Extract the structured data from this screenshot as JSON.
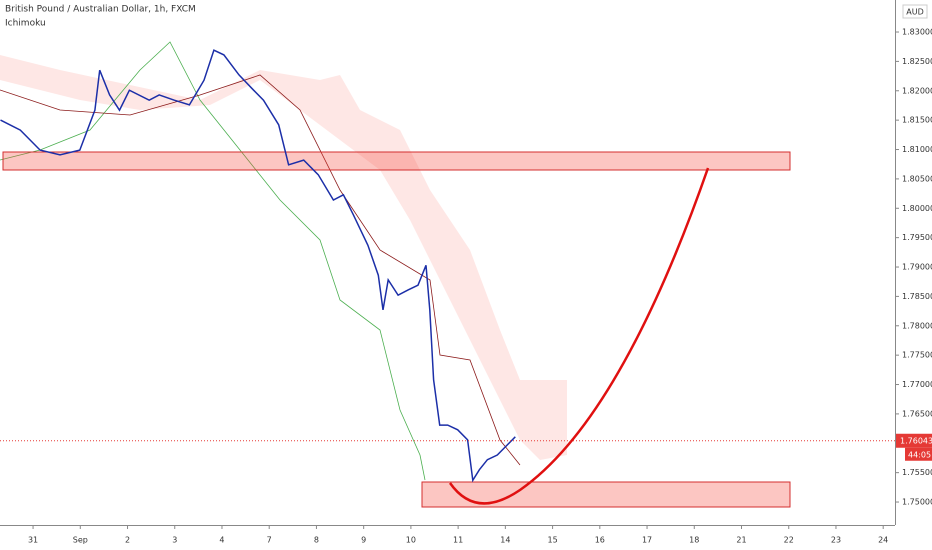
{
  "chart_data": {
    "type": "line",
    "title": "British Pound / Australian Dollar, 1h, FXCM",
    "indicator": "Ichimoku",
    "currency": "AUD",
    "x": [
      -0.69,
      -0.27,
      0.15,
      0.57,
      0.99,
      1.31,
      1.41,
      1.62,
      1.83,
      2.04,
      2.46,
      2.67,
      2.99,
      3.31,
      3.62,
      3.83,
      4.04,
      4.36,
      4.67,
      4.88,
      5.2,
      5.41,
      5.73,
      6.04,
      6.36,
      6.57,
      6.78,
      7.09,
      7.31,
      7.41,
      7.52,
      7.73,
      7.94,
      8.15,
      8.32,
      8.4,
      8.48,
      8.61,
      8.78,
      8.99,
      9.2,
      9.31,
      9.45,
      9.62,
      9.83,
      10.04,
      10.21
    ],
    "values": [
      1.815,
      1.8133,
      1.8099,
      1.8091,
      1.8099,
      1.8167,
      1.8235,
      1.8193,
      1.8167,
      1.8201,
      1.8184,
      1.8193,
      1.8184,
      1.8176,
      1.8218,
      1.8269,
      1.8261,
      1.8227,
      1.8201,
      1.8184,
      1.8142,
      1.8074,
      1.8082,
      1.8057,
      1.8014,
      1.8023,
      1.7989,
      1.7937,
      1.7886,
      1.7827,
      1.7878,
      1.7852,
      1.7861,
      1.7869,
      1.7903,
      1.7827,
      1.7708,
      1.7631,
      1.7631,
      1.7623,
      1.7606,
      1.7537,
      1.7555,
      1.7572,
      1.758,
      1.7597,
      1.7611
    ],
    "color": "#1c2fa8",
    "xlim": [
      -0.7,
      18.25
    ],
    "xticks": [
      {
        "value": 0,
        "label": "31"
      },
      {
        "value": 1,
        "label": "Sep"
      },
      {
        "value": 2,
        "label": "2"
      },
      {
        "value": 3,
        "label": "3"
      },
      {
        "value": 4,
        "label": "4"
      },
      {
        "value": 5,
        "label": "7"
      },
      {
        "value": 6,
        "label": "8"
      },
      {
        "value": 7,
        "label": "9"
      },
      {
        "value": 8,
        "label": "10"
      },
      {
        "value": 9,
        "label": "11"
      },
      {
        "value": 10,
        "label": "14"
      },
      {
        "value": 11,
        "label": "15"
      },
      {
        "value": 12,
        "label": "16"
      },
      {
        "value": 13,
        "label": "17"
      },
      {
        "value": 14,
        "label": "18"
      },
      {
        "value": 15,
        "label": "21"
      },
      {
        "value": 16,
        "label": "22"
      },
      {
        "value": 17,
        "label": "23"
      },
      {
        "value": 18,
        "label": "24"
      }
    ],
    "ylim": [
      1.74609,
      1.83545
    ],
    "yticks": [
      {
        "value": 1.75,
        "label": "1.75000"
      },
      {
        "value": 1.755,
        "label": "1.75500"
      },
      {
        "value": 1.76,
        "label": "1.76000"
      },
      {
        "value": 1.765,
        "label": "1.76500"
      },
      {
        "value": 1.77,
        "label": "1.77000"
      },
      {
        "value": 1.775,
        "label": "1.77500"
      },
      {
        "value": 1.78,
        "label": "1.78000"
      },
      {
        "value": 1.785,
        "label": "1.78500"
      },
      {
        "value": 1.79,
        "label": "1.79000"
      },
      {
        "value": 1.795,
        "label": "1.79500"
      },
      {
        "value": 1.8,
        "label": "1.80000"
      },
      {
        "value": 1.805,
        "label": "1.80500"
      },
      {
        "value": 1.81,
        "label": "1.81000"
      },
      {
        "value": 1.815,
        "label": "1.81500"
      },
      {
        "value": 1.82,
        "label": "1.82000"
      },
      {
        "value": 1.825,
        "label": "1.82500"
      },
      {
        "value": 1.83,
        "label": "1.83000"
      }
    ],
    "last_price": 1.76043,
    "countdown": "44:05"
  }
}
